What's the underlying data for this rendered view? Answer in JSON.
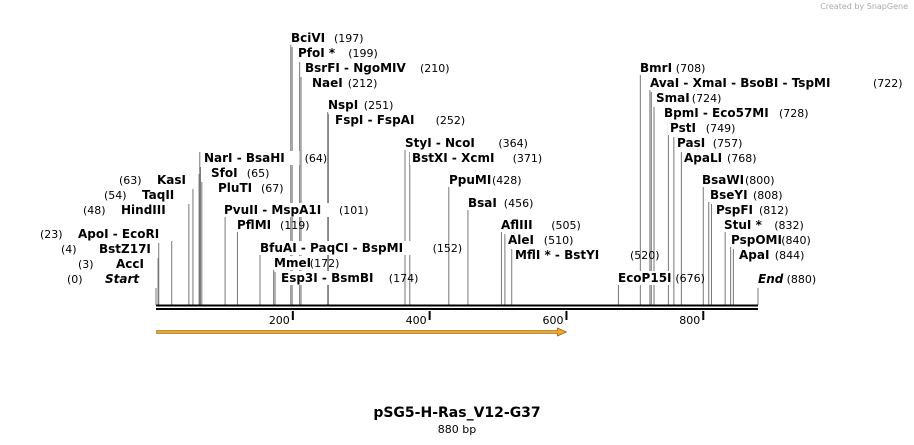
{
  "watermark": "Created by SnapGene",
  "sequence": {
    "name": "pSG5-H-Ras_V12-G37",
    "length_label": "880 bp",
    "length": 880
  },
  "ruler": {
    "ticks": [
      200,
      400,
      600,
      800
    ]
  },
  "feature": {
    "name": "orf-arrow",
    "start": 1,
    "end": 600,
    "direction": "forward",
    "color": "#f5a623"
  },
  "sites": [
    {
      "name": "Start",
      "pos": 0,
      "label": "Start",
      "italic": true,
      "bold": true
    },
    {
      "name": "AccI",
      "pos": 3,
      "label": "AccI"
    },
    {
      "name": "BstZ17I",
      "pos": 4,
      "label": "BstZ17I"
    },
    {
      "name": "ApoI",
      "pos": 23,
      "label": "ApoI  - EcoRI"
    },
    {
      "name": "HindIII",
      "pos": 48,
      "label": "HindIII"
    },
    {
      "name": "TaqII",
      "pos": 54,
      "label": "TaqII"
    },
    {
      "name": "KasI",
      "pos": 63,
      "label": "KasI"
    },
    {
      "name": "NarI",
      "pos": 64,
      "label": "NarI  - BsaHI"
    },
    {
      "name": "SfoI",
      "pos": 65,
      "label": "SfoI"
    },
    {
      "name": "PluTI",
      "pos": 67,
      "label": "PluTI"
    },
    {
      "name": "PvuII",
      "pos": 101,
      "label": "PvuII  - MspA1I"
    },
    {
      "name": "PflMI",
      "pos": 119,
      "label": "PflMI"
    },
    {
      "name": "BfuAI",
      "pos": 152,
      "label": "BfuAI  - PaqCI  - BspMI"
    },
    {
      "name": "MmeI",
      "pos": 172,
      "label": "MmeI"
    },
    {
      "name": "Esp3I",
      "pos": 174,
      "label": "Esp3I  - BsmBI"
    },
    {
      "name": "BciVI",
      "pos": 197,
      "label": "BciVI"
    },
    {
      "name": "PfoI",
      "pos": 199,
      "label": "PfoI *"
    },
    {
      "name": "BsrFI",
      "pos": 210,
      "label": "BsrFI  - NgoMIV"
    },
    {
      "name": "NaeI",
      "pos": 212,
      "label": "NaeI"
    },
    {
      "name": "NspI",
      "pos": 251,
      "label": "NspI"
    },
    {
      "name": "FspI",
      "pos": 252,
      "label": "FspI  - FspAI"
    },
    {
      "name": "StyI",
      "pos": 364,
      "label": "StyI  - NcoI"
    },
    {
      "name": "BstXI",
      "pos": 371,
      "label": "BstXI  - XcmI"
    },
    {
      "name": "PpuMI",
      "pos": 428,
      "label": "PpuMI"
    },
    {
      "name": "BsaI",
      "pos": 456,
      "label": "BsaI"
    },
    {
      "name": "AflIII",
      "pos": 505,
      "label": "AflIII"
    },
    {
      "name": "AleI",
      "pos": 510,
      "label": "AleI"
    },
    {
      "name": "MflI",
      "pos": 520,
      "label": "MflI *  - BstYI"
    },
    {
      "name": "EcoP15I",
      "pos": 676,
      "label": "EcoP15I"
    },
    {
      "name": "BmrI",
      "pos": 708,
      "label": "BmrI"
    },
    {
      "name": "AvaI",
      "pos": 722,
      "label": "AvaI  - XmaI  - BsoBI  - TspMI"
    },
    {
      "name": "SmaI",
      "pos": 724,
      "label": "SmaI"
    },
    {
      "name": "BpmI",
      "pos": 728,
      "label": "BpmI  - Eco57MI"
    },
    {
      "name": "PstI",
      "pos": 749,
      "label": "PstI"
    },
    {
      "name": "PasI",
      "pos": 757,
      "label": "PasI"
    },
    {
      "name": "ApaLI",
      "pos": 768,
      "label": "ApaLI"
    },
    {
      "name": "BsaWI",
      "pos": 800,
      "label": "BsaWI"
    },
    {
      "name": "BseYI",
      "pos": 808,
      "label": "BseYI"
    },
    {
      "name": "PspFI",
      "pos": 812,
      "label": "PspFI"
    },
    {
      "name": "StuI",
      "pos": 832,
      "label": "StuI *"
    },
    {
      "name": "PspOMI",
      "pos": 840,
      "label": "PspOMI"
    },
    {
      "name": "ApaI",
      "pos": 844,
      "label": "ApaI"
    },
    {
      "name": "End",
      "pos": 880,
      "label": "End",
      "italic": true,
      "bold": true
    }
  ]
}
